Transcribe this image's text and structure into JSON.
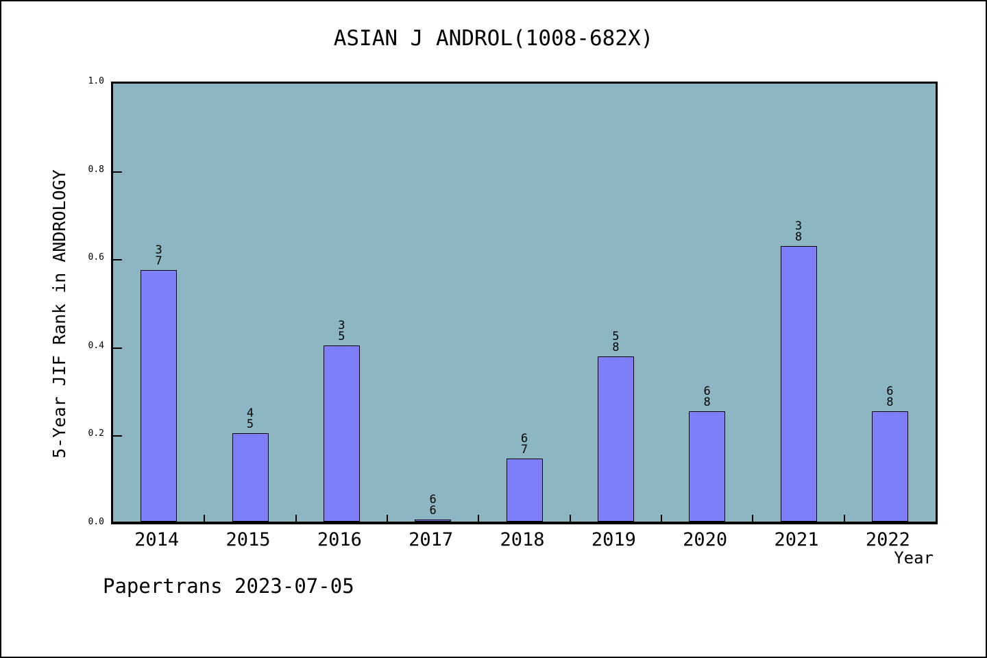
{
  "chart_data": {
    "type": "bar",
    "title": "ASIAN J ANDROL(1008-682X)",
    "xlabel": "Year",
    "ylabel": "5-Year JIF Rank in ANDROLOGY",
    "ylim": [
      0.0,
      1.0
    ],
    "ytick_labels": [
      "0.0",
      "0.2",
      "0.4",
      "0.6",
      "0.8",
      "1.0"
    ],
    "categories": [
      "2014",
      "2015",
      "2016",
      "2017",
      "2018",
      "2019",
      "2020",
      "2021",
      "2022"
    ],
    "values": [
      0.5714,
      0.2,
      0.4,
      0.0,
      0.1429,
      0.375,
      0.25,
      0.625,
      0.25
    ],
    "bar_labels": [
      {
        "num": "3",
        "den": "7"
      },
      {
        "num": "4",
        "den": "5"
      },
      {
        "num": "3",
        "den": "5"
      },
      {
        "num": "6",
        "den": "6"
      },
      {
        "num": "6",
        "den": "7"
      },
      {
        "num": "5",
        "den": "8"
      },
      {
        "num": "6",
        "den": "8"
      },
      {
        "num": "3",
        "den": "8"
      },
      {
        "num": "6",
        "den": "8"
      }
    ],
    "legend": null,
    "grid": false,
    "colors": {
      "bar_fill": "#7c7ff8",
      "bar_outline": "#000000",
      "plot_background": "#8bb6c2",
      "axis": "#000000",
      "figure_background": "#ffffff"
    }
  },
  "footer": {
    "watermark": "Papertrans 2023-07-05"
  }
}
